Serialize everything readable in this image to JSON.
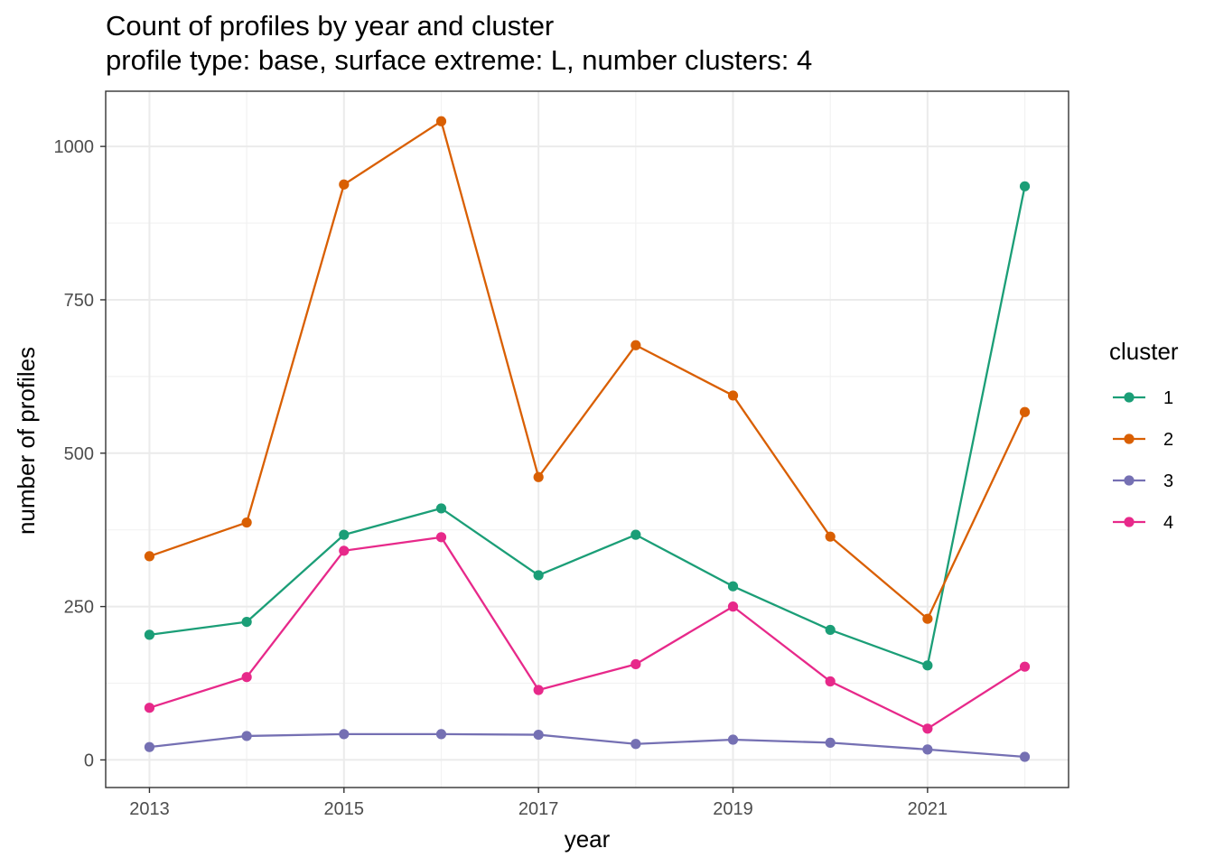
{
  "chart_data": {
    "type": "line",
    "title": "Count of profiles by year and cluster",
    "subtitle": "profile type: base, surface extreme: L, number clusters: 4",
    "xlabel": "year",
    "ylabel": "number of profiles",
    "x": [
      2013,
      2014,
      2015,
      2016,
      2017,
      2018,
      2019,
      2020,
      2021,
      2022
    ],
    "xlim": [
      2012.55,
      2022.45
    ],
    "ylim": [
      -45,
      1090
    ],
    "xticks": [
      2013,
      2015,
      2017,
      2019,
      2021
    ],
    "xtick_labels": [
      "2013",
      "2015",
      "2017",
      "2019",
      "2021"
    ],
    "yticks": [
      0,
      250,
      500,
      750,
      1000
    ],
    "ytick_labels": [
      "0",
      "250",
      "500",
      "750",
      "1000"
    ],
    "grid": true,
    "legend_title": "cluster",
    "legend_position": "right",
    "series": [
      {
        "name": "1",
        "color": "#1b9e77",
        "values": [
          204,
          225,
          367,
          410,
          301,
          367,
          283,
          212,
          154,
          935
        ]
      },
      {
        "name": "2",
        "color": "#d95f02",
        "values": [
          332,
          387,
          938,
          1041,
          461,
          676,
          594,
          364,
          230,
          567
        ]
      },
      {
        "name": "3",
        "color": "#7570b3",
        "values": [
          21,
          39,
          42,
          42,
          41,
          26,
          33,
          28,
          17,
          5
        ]
      },
      {
        "name": "4",
        "color": "#e7298a",
        "values": [
          85,
          135,
          341,
          363,
          114,
          156,
          250,
          128,
          51,
          152
        ]
      }
    ]
  }
}
